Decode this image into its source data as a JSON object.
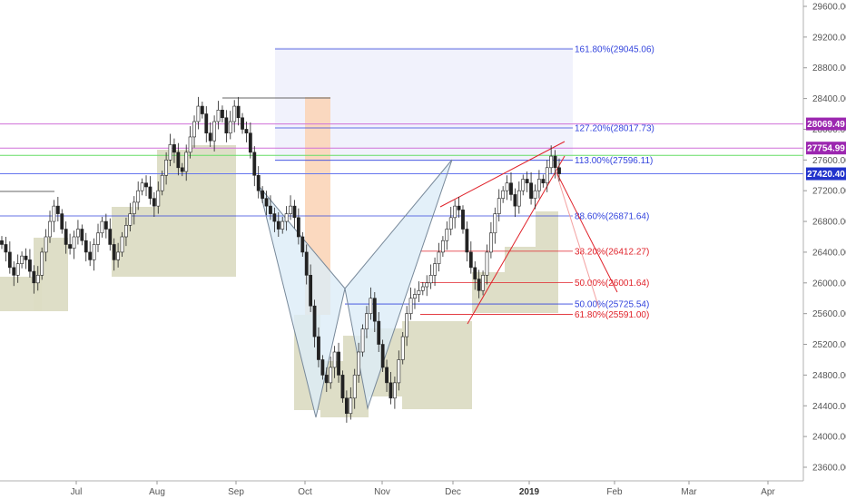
{
  "chart_data": {
    "type": "candlestick",
    "price_axis": {
      "range": [
        23300,
        29800
      ],
      "ticks": [
        "29600.00",
        "29200.00",
        "28800.00",
        "28400.00",
        "28000.00",
        "27600.00",
        "27200.00",
        "26800.00",
        "26400.00",
        "26000.00",
        "25600.00",
        "25200.00",
        "24800.00",
        "24400.00",
        "24000.00",
        "23600.00"
      ],
      "tick_values": [
        29600,
        29200,
        28800,
        28400,
        28000,
        27600,
        27200,
        26800,
        26400,
        26000,
        25600,
        25200,
        24800,
        24400,
        24000,
        23600
      ]
    },
    "time_axis": {
      "labels": [
        {
          "text": "Jul",
          "date": "2018-07-01",
          "bold": false
        },
        {
          "text": "Aug",
          "date": "2018-08-01",
          "bold": false
        },
        {
          "text": "Sep",
          "date": "2018-09-01",
          "bold": false
        },
        {
          "text": "Oct",
          "date": "2018-10-01",
          "bold": false
        },
        {
          "text": "Nov",
          "date": "2018-11-01",
          "bold": false
        },
        {
          "text": "Dec",
          "date": "2018-12-01",
          "bold": false
        },
        {
          "text": "2019",
          "date": "2019-01-01",
          "bold": true
        },
        {
          "text": "Feb",
          "date": "2019-02-01",
          "bold": false
        },
        {
          "text": "Mar",
          "date": "2019-03-01",
          "bold": false
        },
        {
          "text": "Apr",
          "date": "2019-04-01",
          "bold": false
        }
      ]
    },
    "price_tags": [
      {
        "text": "28069.49",
        "value": 28069.49,
        "color": "#9c27b0"
      },
      {
        "text": "27754.99",
        "value": 27754.99,
        "color": "#9c27b0"
      },
      {
        "text": "27420.40",
        "value": 27420.4,
        "color": "#2233cc"
      }
    ],
    "fib_levels": [
      {
        "text": "161.80%(29045.06)",
        "value": 29045.06,
        "color": "#3344dd"
      },
      {
        "text": "127.20%(28017.73)",
        "value": 28017.73,
        "color": "#3344dd"
      },
      {
        "text": "113.00%(27596.11)",
        "value": 27596.11,
        "color": "#3344dd"
      },
      {
        "text": "88.60%(26871.64)",
        "value": 26871.64,
        "color": "#3344dd"
      },
      {
        "text": "38.20%(26412.27)",
        "value": 26412.27,
        "color": "#e0222a"
      },
      {
        "text": "50.00%(26001.64)",
        "value": 26001.64,
        "color": "#e0222a"
      },
      {
        "text": "50.00%(25725.54)",
        "value": 25725.54,
        "color": "#3344dd"
      },
      {
        "text": "61.80%(25591.00)",
        "value": 25591.0,
        "color": "#e0222a"
      }
    ],
    "horizontal_lines": [
      {
        "value": 28069.49,
        "color": "#d070d8"
      },
      {
        "value": 27754.99,
        "color": "#d070d8"
      },
      {
        "value": 27660,
        "color": "#66dd66"
      },
      {
        "value": 27420.4,
        "color": "#6677ee"
      }
    ],
    "series_close": [
      26500,
      26400,
      26200,
      26100,
      26250,
      26350,
      26300,
      26150,
      26000,
      26100,
      26400,
      26600,
      26800,
      27000,
      26900,
      26700,
      26500,
      26450,
      26600,
      26700,
      26550,
      26400,
      26300,
      26500,
      26650,
      26800,
      26700,
      26500,
      26300,
      26400,
      26600,
      26750,
      26900,
      27050,
      27200,
      27300,
      27250,
      27100,
      27000,
      27200,
      27400,
      27600,
      27800,
      27700,
      27500,
      27450,
      27700,
      27900,
      28100,
      28300,
      28200,
      27950,
      27850,
      28100,
      28250,
      28150,
      27950,
      28100,
      28300,
      28150,
      28000,
      27950,
      27700,
      27400,
      27200,
      27100,
      27000,
      26900,
      26800,
      26700,
      26800,
      26900,
      27000,
      26850,
      26600,
      26400,
      26100,
      25700,
      25300,
      25000,
      24800,
      24700,
      24900,
      25100,
      24800,
      24500,
      24300,
      24500,
      24800,
      25100,
      25400,
      25600,
      25800,
      25500,
      25200,
      24900,
      24700,
      24500,
      24700,
      25000,
      25300,
      25600,
      25800,
      25850,
      25900,
      25950,
      26000,
      26100,
      26250,
      26400,
      26550,
      26700,
      26850,
      27000,
      26950,
      26700,
      26400,
      26200,
      26050,
      25900,
      26100,
      26400,
      26650,
      26900,
      27100,
      27200,
      27300,
      27150,
      27000,
      27200,
      27350,
      27300,
      27100,
      27200,
      27350,
      27300,
      27500,
      27650,
      27500,
      27420
    ]
  }
}
